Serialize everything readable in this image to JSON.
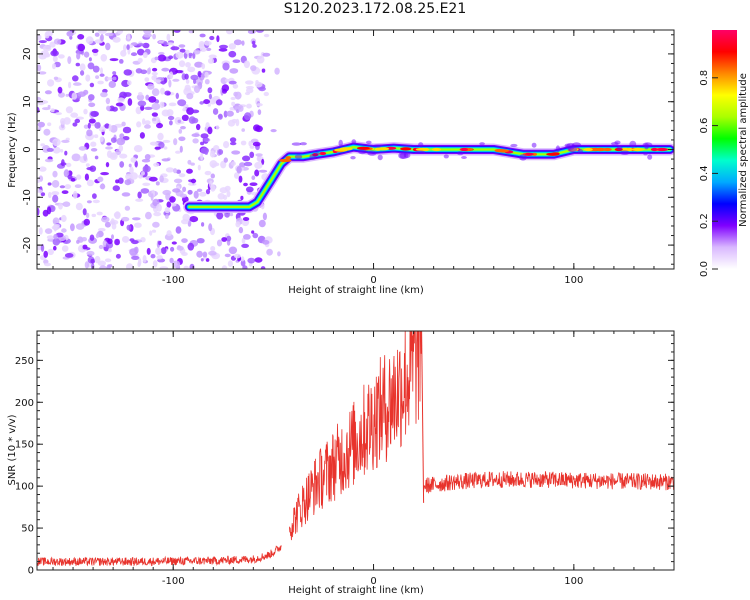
{
  "title": "S120.2023.172.08.25.E21",
  "chart_data": [
    {
      "type": "heatmap",
      "xlabel": "Height of straight line (km)",
      "ylabel": "Frequency (Hz)",
      "xlim": [
        -168,
        150
      ],
      "ylim": [
        -25,
        25
      ],
      "x_ticks": [
        -100,
        0,
        100
      ],
      "y_ticks": [
        -20,
        -10,
        0,
        10,
        20
      ],
      "ridge": {
        "x": [
          -92,
          -80,
          -70,
          -62,
          -58,
          -52,
          -46,
          -42,
          -35,
          -28,
          -20,
          -10,
          0,
          10,
          20,
          40,
          60,
          75,
          90,
          100,
          120,
          140,
          148
        ],
        "y": [
          -12,
          -12,
          -12,
          -12,
          -11,
          -7,
          -3,
          -1.5,
          -1.5,
          -1,
          -0.5,
          0.5,
          0,
          0.3,
          0,
          0,
          0,
          -1,
          -1,
          0,
          0,
          0,
          0
        ]
      },
      "noise_region_x": [
        -168,
        -55
      ],
      "colorbar": {
        "label": "Normalized spectral amplitude",
        "range": [
          0.0,
          1.0
        ],
        "ticks": [
          "0.0",
          "0.2",
          "0.4",
          "0.6",
          "0.8"
        ],
        "colors": [
          "#ffffff",
          "#d9b8ff",
          "#7f00ff",
          "#0000ff",
          "#00aaff",
          "#00ffcc",
          "#00ff00",
          "#aaff00",
          "#ffff00",
          "#ff8800",
          "#ff0000",
          "#ff0066"
        ]
      }
    },
    {
      "type": "line",
      "xlabel": "Height of straight line (km)",
      "ylabel": "SNR (10 * v/v)",
      "xlim": [
        -168,
        150
      ],
      "ylim": [
        0,
        285
      ],
      "x_ticks": [
        -100,
        0,
        100
      ],
      "y_ticks": [
        0,
        50,
        100,
        150,
        200,
        250
      ],
      "color": "#e8332c",
      "segments": [
        {
          "x": [
            -168,
            -120,
            -80,
            -60,
            -52,
            -46
          ],
          "y": [
            10,
            10,
            11,
            13,
            18,
            28
          ]
        },
        {
          "x": [
            -42,
            -35,
            -28,
            -20,
            -10,
            0,
            10,
            18,
            24
          ],
          "y": [
            50,
            80,
            105,
            125,
            150,
            180,
            205,
            235,
            270
          ]
        },
        {
          "x": [
            25,
            40,
            60,
            80,
            100,
            120,
            150
          ],
          "y": [
            100,
            105,
            108,
            108,
            107,
            106,
            105
          ]
        }
      ]
    }
  ]
}
